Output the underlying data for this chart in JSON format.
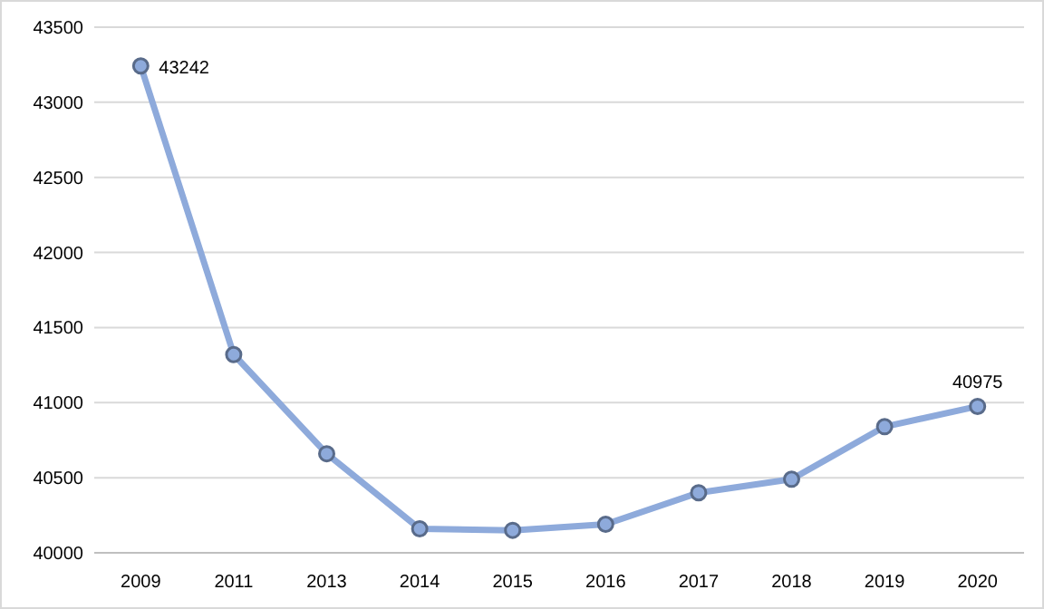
{
  "chart_data": {
    "type": "line",
    "categories": [
      "2009",
      "2011",
      "2013",
      "2014",
      "2015",
      "2016",
      "2017",
      "2018",
      "2019",
      "2020"
    ],
    "series": [
      {
        "color": "#8eaadb",
        "values": [
          43242,
          41320,
          40660,
          40160,
          40150,
          40190,
          40400,
          40490,
          40840,
          40975
        ],
        "value_labels": [
          "43242",
          null,
          null,
          null,
          null,
          null,
          null,
          null,
          null,
          "40975"
        ]
      }
    ],
    "ylim": [
      40000,
      43500
    ],
    "yticks": [
      40000,
      40500,
      41000,
      41500,
      42000,
      42500,
      43000,
      43500
    ],
    "grid": "y",
    "marker": "circle",
    "line_style": "solid"
  }
}
